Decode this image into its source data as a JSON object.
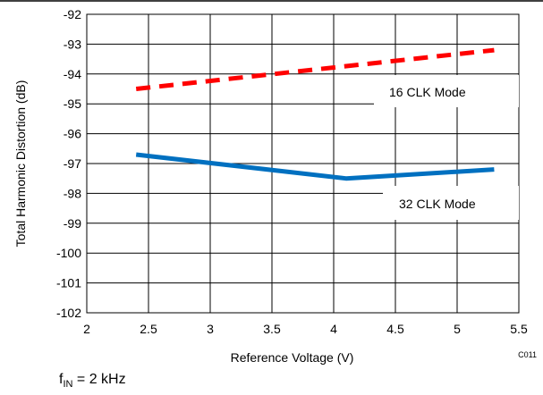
{
  "chart_data": {
    "type": "line",
    "xlabel": "Reference Voltage (V)",
    "ylabel": "Total Harmonic Distortion (dB)",
    "xlim": [
      2,
      5.5
    ],
    "ylim": [
      -102,
      -92
    ],
    "xticks": [
      2,
      2.5,
      3,
      3.5,
      4,
      4.5,
      5,
      5.5
    ],
    "yticks": [
      -102,
      -101,
      -100,
      -99,
      -98,
      -97,
      -96,
      -95,
      -94,
      -93,
      -92
    ],
    "xtick_labels": [
      "2",
      "2.5",
      "3",
      "3.5",
      "4",
      "4.5",
      "5",
      "5.5"
    ],
    "ytick_labels": [
      "-102",
      "-101",
      "-100",
      "-99",
      "-98",
      "-97",
      "-96",
      "-95",
      "-94",
      "-93",
      "-92"
    ],
    "grid": true,
    "series": [
      {
        "name": "16 CLK Mode",
        "color": "#ff0000",
        "dash": true,
        "x": [
          2.4,
          5.3
        ],
        "y": [
          -94.5,
          -93.2
        ]
      },
      {
        "name": "32 CLK Mode",
        "color": "#0070c0",
        "dash": false,
        "x": [
          2.4,
          4.1,
          5.3
        ],
        "y": [
          -96.7,
          -97.5,
          -97.2
        ]
      }
    ],
    "labels": [
      "16 CLK Mode",
      "32 CLK Mode"
    ],
    "code": "C011"
  },
  "footnote": {
    "main": "f",
    "sub": "IN",
    "rest": " = 2 kHz"
  }
}
